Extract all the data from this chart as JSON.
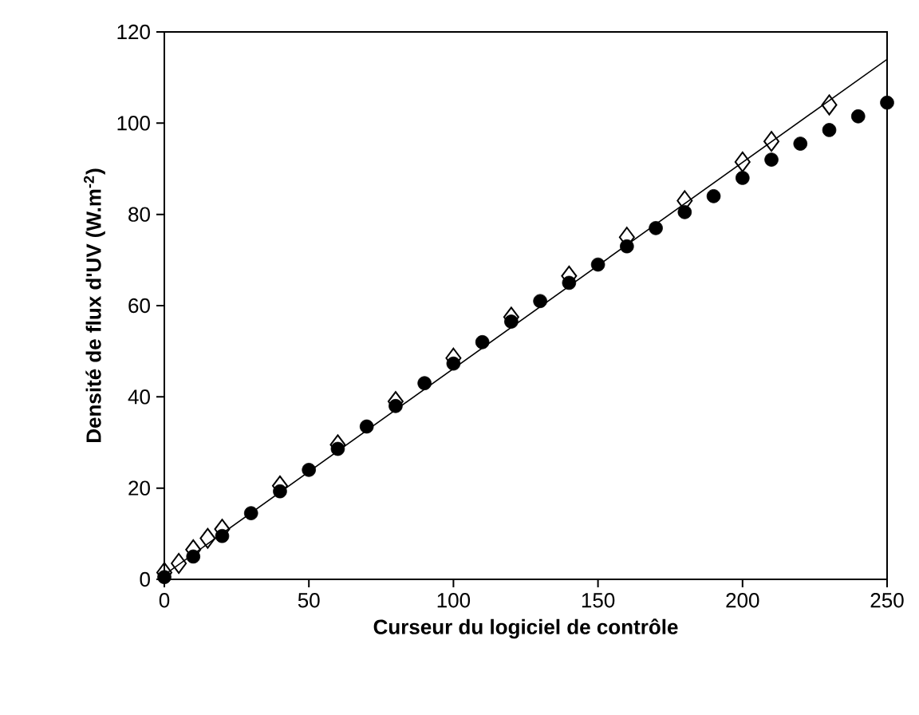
{
  "chart_data": {
    "type": "scatter",
    "xlabel": "Curseur du logiciel de contrôle",
    "ylabel": "Densité de flux d'UV (W.m$^{-2}$)",
    "xlim": [
      0,
      250
    ],
    "ylim": [
      0,
      120
    ],
    "xticks": [
      0,
      50,
      100,
      150,
      200,
      250
    ],
    "yticks": [
      0,
      20,
      40,
      60,
      80,
      100,
      120
    ],
    "grid": false,
    "series": [
      {
        "marker": "circle",
        "color": "#000000",
        "x": [
          0,
          10,
          20,
          30,
          40,
          50,
          60,
          70,
          80,
          90,
          100,
          110,
          120,
          130,
          140,
          150,
          160,
          170,
          180,
          190,
          200,
          210,
          220,
          230,
          240,
          250
        ],
        "values": [
          0.5,
          5,
          9.5,
          14.5,
          19.3,
          24,
          28.6,
          33.5,
          38,
          43,
          47.3,
          52,
          56.5,
          61,
          65,
          69,
          73,
          77,
          80.5,
          84,
          88,
          92,
          95.5,
          98.5,
          101.5,
          104.5
        ]
      },
      {
        "marker": "diamond",
        "color": "#000000",
        "x": [
          0,
          5,
          10,
          15,
          20,
          40,
          60,
          80,
          100,
          120,
          140,
          160,
          180,
          200,
          210,
          230
        ],
        "values": [
          1.5,
          3.5,
          6.5,
          9,
          11,
          20.5,
          29.5,
          39,
          48.5,
          57.5,
          66.5,
          75,
          83,
          91.5,
          96,
          104
        ]
      },
      {
        "type": "line",
        "color": "#000000",
        "x": [
          0,
          250
        ],
        "values": [
          1,
          114
        ]
      }
    ]
  }
}
